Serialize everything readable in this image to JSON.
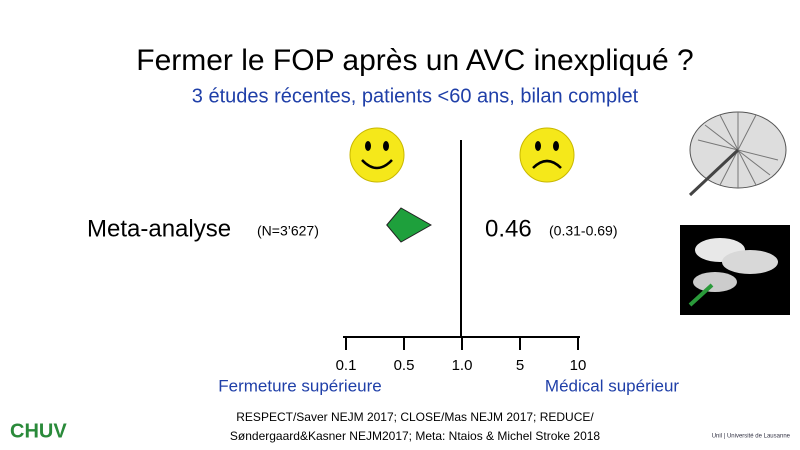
{
  "chart_data": {
    "type": "forest",
    "title": "Fermer le FOP après un AVC inexpliqué ?",
    "subtitle": "3 études récentes, patients <60 ans, bilan complet",
    "row_label": "Meta-analyse",
    "row_note": "(N=3’627)",
    "estimate": 0.46,
    "ci": [
      0.31,
      0.69
    ],
    "ci_label": "(0.31-0.69)",
    "color": "#1ea03c",
    "xticks": [
      0.1,
      0.5,
      {
        "value": 1,
        "label": "1.0"
      },
      5,
      10
    ],
    "left_label": "Fermeture supérieure",
    "right_label": "Médical supérieur",
    "footnote": [
      "RESPECT/Saver NEJM 2017; CLOSE/Mas NEJM 2017; REDUCE/",
      "Søndergaard&Kasner NEJM2017; Meta: Ntaios & Michel Stroke 2018"
    ],
    "logo_left": "CHUV",
    "logo_right": "Unil | Université de Lausanne"
  }
}
